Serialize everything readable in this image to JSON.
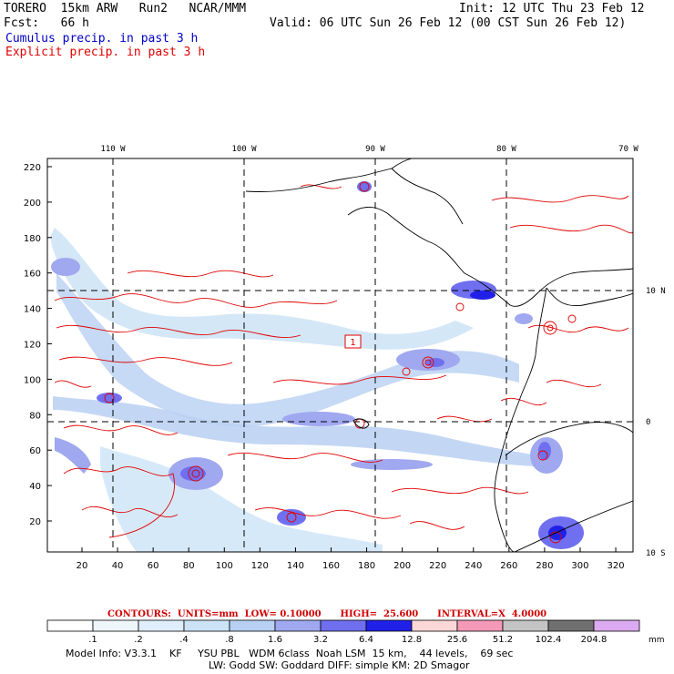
{
  "header": {
    "model": "TORERO  15km ARW   Run2   NCAR/MMM",
    "forecast": "Fcst:   66 h",
    "init": "Init: 12 UTC Thu 23 Feb 12",
    "valid": "Valid: 06 UTC Sun 26 Feb 12 (00 CST Sun 26 Feb 12)",
    "cumulus_label": "Cumulus precip. in past 3 h",
    "explicit_label": "Explicit precip. in past 3 h"
  },
  "axes": {
    "top_lon_labels": [
      "110 W",
      "100 W",
      "90 W",
      "80 W",
      "70 W"
    ],
    "right_lat_labels": [
      "10 N",
      "0",
      "10 S"
    ],
    "left_y_ticks": [
      "220",
      "200",
      "180",
      "160",
      "140",
      "120",
      "100",
      "80",
      "60",
      "40",
      "20"
    ],
    "bottom_x_ticks": [
      "20",
      "40",
      "60",
      "80",
      "100",
      "120",
      "140",
      "160",
      "180",
      "200",
      "220",
      "240",
      "260",
      "280",
      "300",
      "320"
    ]
  },
  "annotation": {
    "box_label": "1"
  },
  "colorbar": {
    "contour_text": "CONTOURS:  UNITS=mm  LOW= 0.10000      HIGH=  25.600      INTERVAL=X  4.0000",
    "labels": [
      ".1",
      ".2",
      ".4",
      ".8",
      "1.6",
      "3.2",
      "6.4",
      "12.8",
      "25.6",
      "51.2",
      "102.4",
      "204.8"
    ],
    "units": "mm",
    "colors": [
      "#ffffff",
      "#eef6fb",
      "#dfeefa",
      "#cce3f6",
      "#b8d0f2",
      "#a0a8f0",
      "#6f6ff0",
      "#2020e8",
      "#fbd7d7",
      "#f49ab8",
      "#c4c4c4",
      "#707070",
      "#dcaaf0"
    ]
  },
  "footer": {
    "line1": "Model Info: V3.3.1    KF     YSU PBL   WDM 6class  Noah LSM  15 km,    44 levels,    69 sec",
    "line2": "LW: Godd SW: Goddard DIFF: simple KM: 2D Smagor"
  }
}
